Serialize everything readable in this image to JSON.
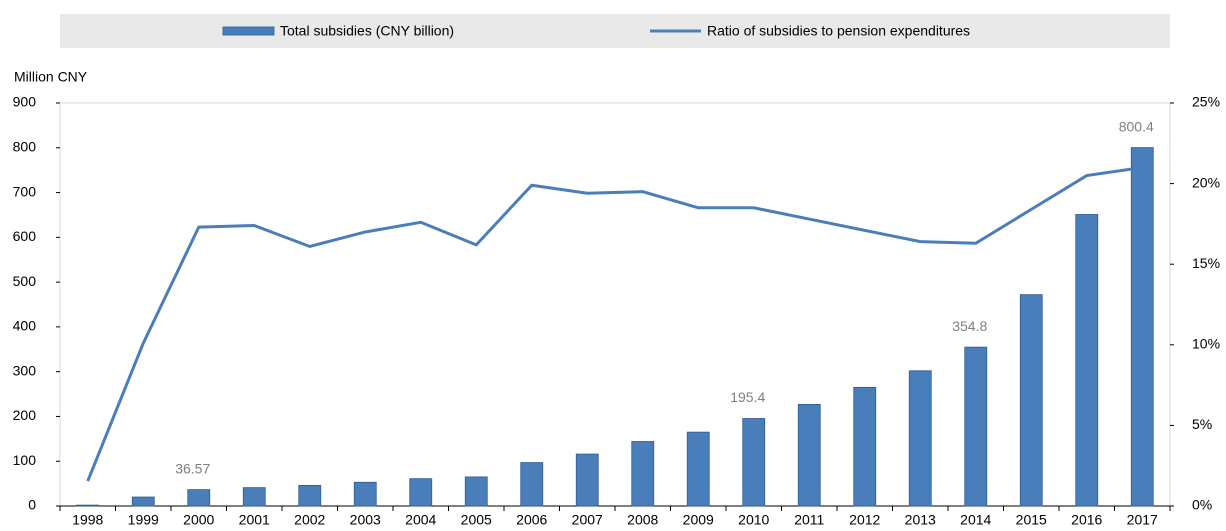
{
  "chart_data": {
    "type": "bar-line",
    "y_label": "Million CNY",
    "categories": [
      "1998",
      "1999",
      "2000",
      "2001",
      "2002",
      "2003",
      "2004",
      "2005",
      "2006",
      "2007",
      "2008",
      "2009",
      "2010",
      "2011",
      "2012",
      "2013",
      "2014",
      "2015",
      "2016",
      "2017"
    ],
    "series": [
      {
        "name": "Total subsidies (CNY billion)",
        "type": "bar",
        "color": "#4a7ebb",
        "values": [
          2,
          20,
          36.57,
          41,
          46,
          53,
          61,
          65,
          97,
          116,
          144,
          165,
          195.4,
          227,
          265,
          302,
          354.8,
          472,
          651,
          800.4
        ],
        "value_labels": [
          null,
          null,
          "36.57",
          null,
          null,
          null,
          null,
          null,
          null,
          null,
          null,
          null,
          "195.4",
          null,
          null,
          null,
          "354.8",
          null,
          null,
          "800.4"
        ]
      },
      {
        "name": "Ratio of subsidies to pension expenditures",
        "type": "line",
        "axis": "y2",
        "color": "#4a7ebb",
        "values": [
          1.55,
          10.1,
          17.3,
          17.4,
          16.1,
          17.0,
          17.6,
          16.2,
          19.9,
          19.4,
          19.5,
          18.5,
          18.5,
          17.8,
          17.1,
          16.4,
          16.3,
          18.4,
          20.5,
          21.0
        ]
      }
    ],
    "ylim": [
      0,
      900
    ],
    "yticks": [
      0,
      100,
      200,
      300,
      400,
      500,
      600,
      700,
      800,
      900
    ],
    "y2lim": [
      0,
      25
    ],
    "y2ticks": [
      {
        "value": 0,
        "label": "0%"
      },
      {
        "value": 5,
        "label": "5%"
      },
      {
        "value": 10,
        "label": "10%"
      },
      {
        "value": 15,
        "label": "15%"
      },
      {
        "value": 20,
        "label": "20%"
      },
      {
        "value": 25,
        "label": "25%"
      }
    ]
  }
}
